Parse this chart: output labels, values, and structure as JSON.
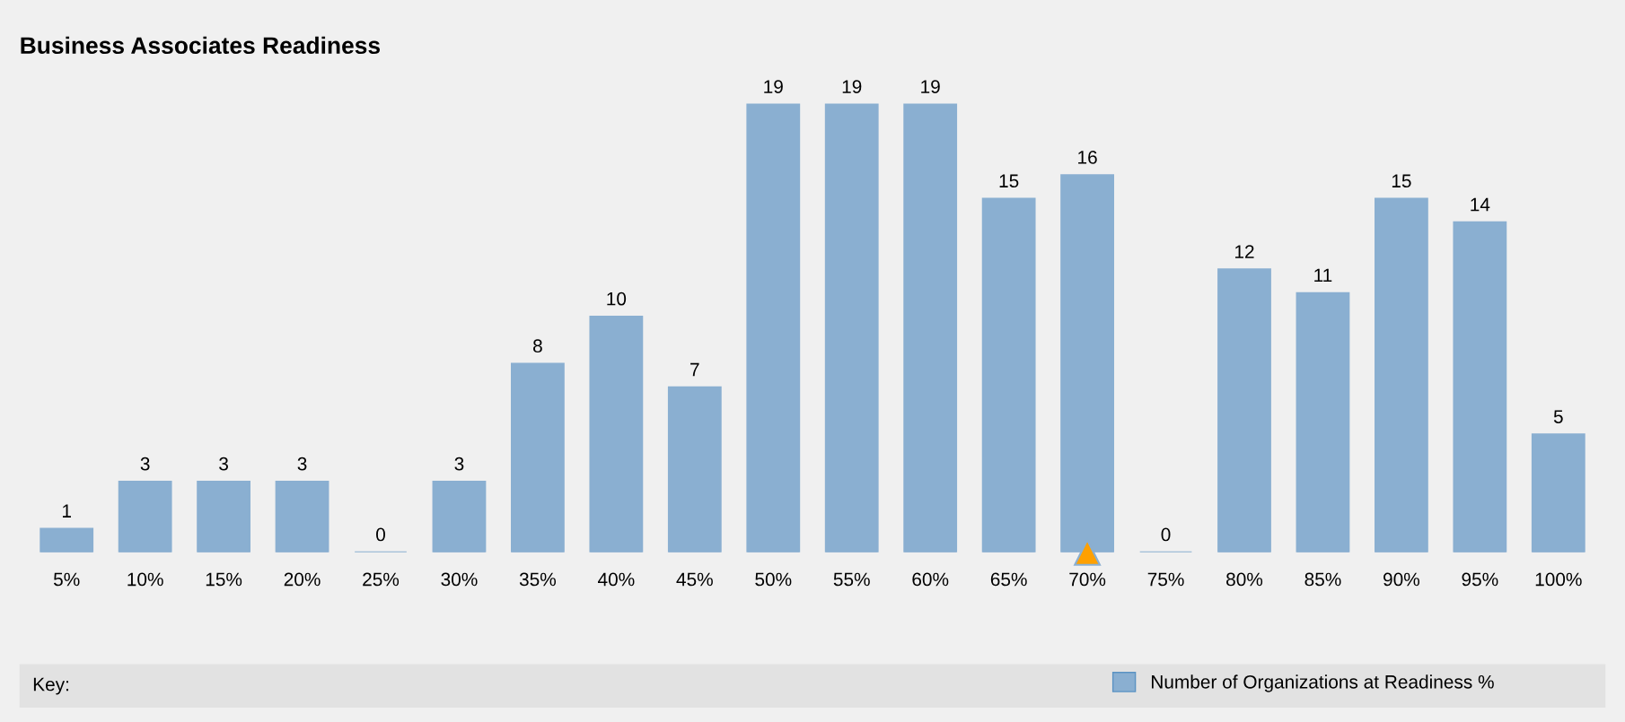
{
  "chart_data": {
    "type": "bar",
    "title": "Business Associates Readiness",
    "categories": [
      "5%",
      "10%",
      "15%",
      "20%",
      "25%",
      "30%",
      "35%",
      "40%",
      "45%",
      "50%",
      "55%",
      "60%",
      "65%",
      "70%",
      "75%",
      "80%",
      "85%",
      "90%",
      "95%",
      "100%"
    ],
    "series": [
      {
        "name": "Number of Organizations at Readiness %",
        "color": "#8aafd1",
        "values": [
          1,
          3,
          3,
          3,
          0,
          3,
          8,
          10,
          7,
          19,
          19,
          19,
          15,
          16,
          0,
          12,
          11,
          15,
          14,
          5
        ]
      },
      {
        "type": "scatter",
        "color": "#ffa000",
        "marker": "triangle",
        "x": [
          "70%"
        ],
        "values": [
          0
        ],
        "value_labels": [
          null
        ]
      }
    ],
    "data_labels": true,
    "legend": "bottom",
    "legend_title": "Key:",
    "grid": false
  }
}
